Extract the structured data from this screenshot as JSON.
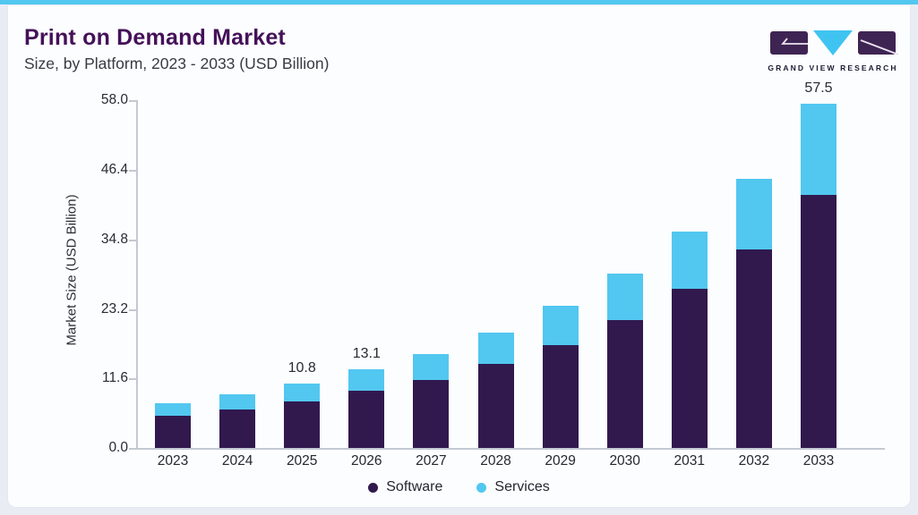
{
  "page": {
    "title": "Print on Demand Market",
    "subtitle": "Size, by Platform, 2023 - 2033 (USD Billion)",
    "logo_text": "GRAND VIEW RESEARCH",
    "colors": {
      "accent_blue": "#52c7f0",
      "title_purple": "#441158",
      "logo_dark": "#3e2453",
      "page_background": "#e9edf3",
      "card_background": "#fcfdff",
      "axis_gray": "#c3c9d2"
    }
  },
  "chart_data": {
    "type": "bar",
    "stacked": true,
    "title": "Print on Demand Market",
    "subtitle": "Size, by Platform, 2023 - 2033 (USD Billion)",
    "categories": [
      "2023",
      "2024",
      "2025",
      "2026",
      "2027",
      "2028",
      "2029",
      "2030",
      "2031",
      "2032",
      "2033"
    ],
    "series": [
      {
        "name": "Software",
        "color": "#31194e",
        "values": [
          5.4,
          6.4,
          7.8,
          9.6,
          11.4,
          14.0,
          17.2,
          21.4,
          26.6,
          33.1,
          42.3
        ]
      },
      {
        "name": "Services",
        "color": "#52c7f0",
        "values": [
          2.0,
          2.5,
          3.0,
          3.5,
          4.2,
          5.2,
          6.5,
          7.7,
          9.5,
          11.9,
          15.2
        ]
      }
    ],
    "totals": [
      7.4,
      8.9,
      10.8,
      13.1,
      15.6,
      19.2,
      23.7,
      29.1,
      36.1,
      45.0,
      57.5
    ],
    "total_labels": [
      "",
      "",
      "10.8",
      "13.1",
      "",
      "",
      "",
      "",
      "",
      "",
      "57.5"
    ],
    "ylabel": "Market Size (USD Billion)",
    "yticks": [
      "0.0",
      "11.6",
      "23.2",
      "34.8",
      "46.4",
      "58.0"
    ],
    "ylim": [
      0,
      58
    ],
    "grid": false,
    "legend_position": "bottom"
  }
}
